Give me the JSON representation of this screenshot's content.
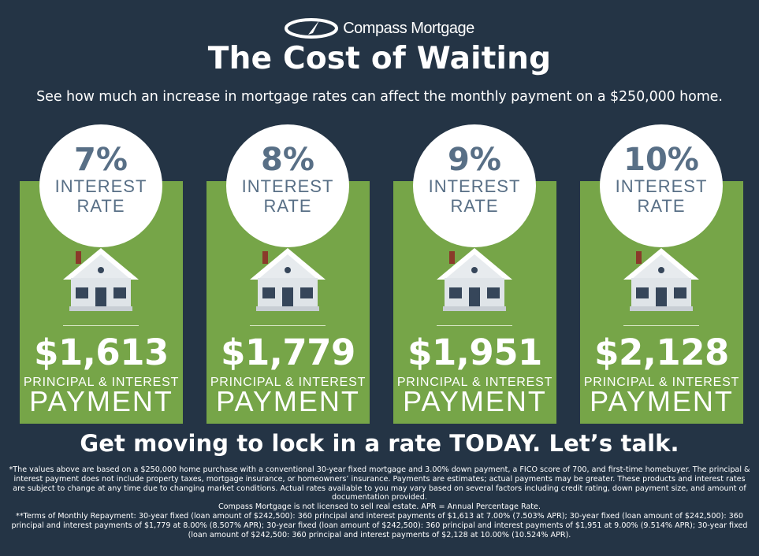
{
  "brand": {
    "name": "Compass Mortgage"
  },
  "header": {
    "title": "The Cost of Waiting",
    "subtitle": "See how much an increase in mortgage rates can affect the monthly payment on a $250,000 home."
  },
  "colors": {
    "background": "#243445",
    "card_green": "#76a548",
    "circle_text": "#586f86",
    "white": "#ffffff"
  },
  "cards": [
    {
      "rate": "7%",
      "rate_line1": "INTEREST",
      "rate_line2": "RATE",
      "amount": "$1,613",
      "label_small": "PRINCIPAL & INTEREST",
      "label_big": "PAYMENT",
      "icon": "house-icon"
    },
    {
      "rate": "8%",
      "rate_line1": "INTEREST",
      "rate_line2": "RATE",
      "amount": "$1,779",
      "label_small": "PRINCIPAL & INTEREST",
      "label_big": "PAYMENT",
      "icon": "house-icon"
    },
    {
      "rate": "9%",
      "rate_line1": "INTEREST",
      "rate_line2": "RATE",
      "amount": "$1,951",
      "label_small": "PRINCIPAL & INTEREST",
      "label_big": "PAYMENT",
      "icon": "house-icon"
    },
    {
      "rate": "10%",
      "rate_line1": "INTEREST",
      "rate_line2": "RATE",
      "amount": "$2,128",
      "label_small": "PRINCIPAL & INTEREST",
      "label_big": "PAYMENT",
      "icon": "house-icon"
    }
  ],
  "cta": "Get moving to lock in a rate TODAY. Let’s talk.",
  "disclaimer": {
    "p1": "*The values above are based on a $250,000 home purchase with a conventional 30-year fixed mortgage and 3.00% down payment, a FICO score of 700, and first-time homebuyer. The principal & interest payment does not include property taxes, mortgage insurance, or homeowners’ insurance. Payments are estimates; actual payments may be greater. These products and interest rates are subject to change at any time due to changing market conditions. Actual rates available to you may vary based on several factors including credit rating, down payment size, and amount of documentation provided.",
    "p2": "Compass Mortgage is not licensed to sell real estate. APR = Annual Percentage Rate.",
    "p3": "**Terms of Monthly Repayment: 30-year fixed (loan amount of $242,500): 360 principal and interest payments of $1,613 at 7.00% (7.503% APR); 30-year fixed (loan amount of $242,500): 360 principal and interest payments of $1,779 at 8.00% (8.507% APR); 30-year fixed (loan amount of $242,500): 360 principal and interest payments of $1,951 at 9.00% (9.514% APR); 30-year fixed (loan amount of $242,500: 360 principal and interest payments of $2,128 at 10.00% (10.524% APR)."
  }
}
